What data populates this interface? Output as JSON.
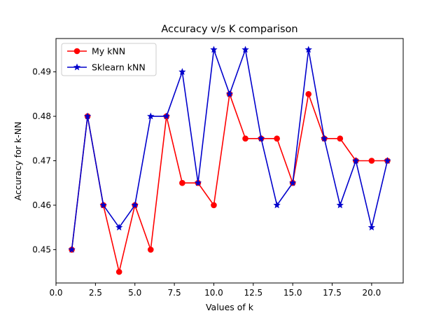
{
  "chart_data": {
    "type": "line",
    "title": "Accuracy v/s K comparison",
    "xlabel": "Values of k",
    "ylabel": "Accuracy for k-NN",
    "xlim": [
      0.0,
      22.0
    ],
    "ylim": [
      0.4425,
      0.4975
    ],
    "x_ticks": [
      0.0,
      2.5,
      5.0,
      7.5,
      10.0,
      12.5,
      15.0,
      17.5,
      20.0
    ],
    "x_tick_labels": [
      "0.0",
      "2.5",
      "5.0",
      "7.5",
      "10.0",
      "12.5",
      "15.0",
      "17.5",
      "20.0"
    ],
    "y_ticks": [
      0.45,
      0.46,
      0.47,
      0.48,
      0.49
    ],
    "y_tick_labels": [
      "0.45",
      "0.46",
      "0.47",
      "0.48",
      "0.49"
    ],
    "grid": false,
    "legend_position": "top-left",
    "x": [
      1,
      2,
      3,
      4,
      5,
      6,
      7,
      8,
      9,
      10,
      11,
      12,
      13,
      14,
      15,
      16,
      17,
      18,
      19,
      20,
      21
    ],
    "series": [
      {
        "name": "My kNN",
        "color": "#ff0000",
        "marker": "circle",
        "values": [
          0.45,
          0.48,
          0.46,
          0.445,
          0.46,
          0.45,
          0.48,
          0.465,
          0.465,
          0.46,
          0.485,
          0.475,
          0.475,
          0.475,
          0.465,
          0.485,
          0.475,
          0.475,
          0.47,
          0.47,
          0.47
        ]
      },
      {
        "name": "Sklearn kNN",
        "color": "#0000cc",
        "marker": "star",
        "values": [
          0.45,
          0.48,
          0.46,
          0.455,
          0.46,
          0.48,
          0.48,
          0.49,
          0.465,
          0.495,
          0.485,
          0.495,
          0.475,
          0.46,
          0.465,
          0.495,
          0.475,
          0.46,
          0.47,
          0.455,
          0.47
        ]
      }
    ]
  }
}
